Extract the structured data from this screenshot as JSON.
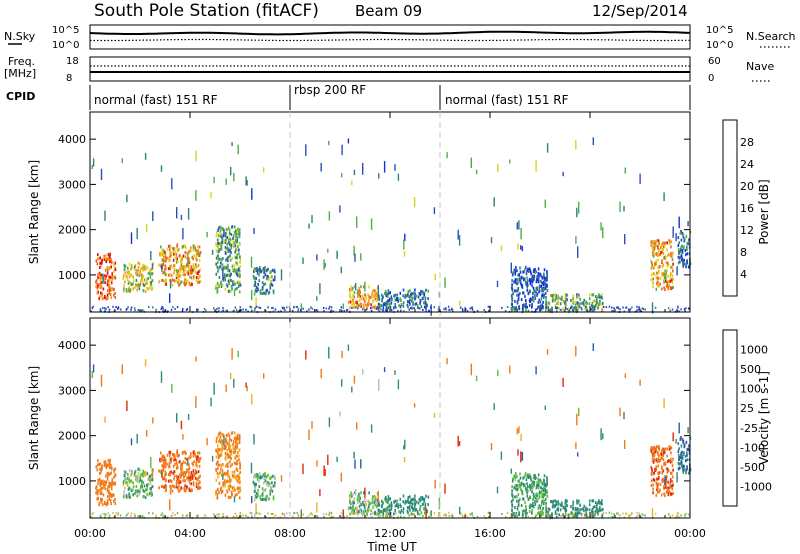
{
  "header": {
    "station": "South Pole Station (fitACF)",
    "beam": "Beam 09",
    "date": "12/Sep/2014"
  },
  "top_panels": {
    "nsky_label": "N.Sky",
    "nsky_ticks": [
      "10^5",
      "10^0"
    ],
    "nsearch_label": "N.Search",
    "nsearch_ticks": [
      "10^5",
      "10^0"
    ],
    "freq_label": "Freq.",
    "freq_unit": "[MHz]",
    "freq_ticks": [
      "18",
      "8"
    ],
    "nave_label": "Nave",
    "nave_ticks": [
      "60",
      "0"
    ],
    "cpid_label": "CPID",
    "cpid_segments": [
      {
        "label": "normal (fast) 151 RF",
        "start_hour": 0,
        "end_hour": 8
      },
      {
        "label": "rbsp 200 RF",
        "start_hour": 8,
        "end_hour": 14
      },
      {
        "label": "normal (fast) 151 RF",
        "start_hour": 14,
        "end_hour": 24
      }
    ]
  },
  "panels": {
    "ylabel": "Slant Range [km]",
    "xlabel": "Time UT",
    "xticks": [
      "00:00",
      "04:00",
      "08:00",
      "12:00",
      "16:00",
      "20:00",
      "00:00"
    ],
    "yticks": [
      "1000",
      "2000",
      "3000",
      "4000"
    ]
  },
  "power_colorbar": {
    "label": "Power [dB]",
    "ticks": [
      "4",
      "8",
      "12",
      "16",
      "20",
      "24",
      "28"
    ],
    "colors": [
      "#1030e0",
      "#2a4fb8",
      "#2f7f80",
      "#4fae4a",
      "#d8d420",
      "#f0a020",
      "#f06418",
      "#e01010"
    ]
  },
  "velocity_colorbar": {
    "label": "Velocity [m s-1]",
    "ticks": [
      "1000",
      "500",
      "100",
      "25",
      "-25",
      "-100",
      "-500",
      "-1000"
    ],
    "colors": [
      "#1a30c8",
      "#2a58b0",
      "#2f8a78",
      "#5cbf3c",
      "#bdbdbd",
      "#f0b020",
      "#f07a18",
      "#e02a10",
      "#e80c0c"
    ]
  },
  "chart_data": {
    "type": "heatmap",
    "title": "South Pole Station (fitACF) Beam 09 12/Sep/2014",
    "xlabel": "Time UT",
    "ylabel": "Slant Range [km]",
    "xlim": [
      0,
      24
    ],
    "ylim": [
      180,
      4600
    ],
    "scatter_regions": [
      {
        "t0": 0.2,
        "t1": 1.0,
        "r0": 500,
        "r1": 1500,
        "power": 26,
        "velocity": -250
      },
      {
        "t0": 1.3,
        "t1": 2.5,
        "r0": 650,
        "r1": 1300,
        "power": 18,
        "velocity": 60
      },
      {
        "t0": 2.7,
        "t1": 4.4,
        "r0": 800,
        "r1": 1700,
        "power": 22,
        "velocity": -350
      },
      {
        "t0": 5.0,
        "t1": 6.0,
        "r0": 650,
        "r1": 2100,
        "power": 12,
        "velocity": -150
      },
      {
        "t0": 6.5,
        "t1": 7.4,
        "r0": 600,
        "r1": 1200,
        "power": 10,
        "velocity": 80
      },
      {
        "t0": 10.3,
        "t1": 11.5,
        "r0": 280,
        "r1": 780,
        "power": 22,
        "velocity": 60
      },
      {
        "t0": 11.5,
        "t1": 13.5,
        "r0": 300,
        "r1": 700,
        "power": 9,
        "velocity": 200
      },
      {
        "t0": 16.8,
        "t1": 18.3,
        "r0": 250,
        "r1": 1200,
        "power": 6,
        "velocity": 120
      },
      {
        "t0": 18.2,
        "t1": 20.5,
        "r0": 220,
        "r1": 600,
        "power": 14,
        "velocity": 300
      },
      {
        "t0": 22.4,
        "t1": 23.3,
        "r0": 700,
        "r1": 1800,
        "power": 22,
        "velocity": -400
      },
      {
        "t0": 23.5,
        "t1": 24.0,
        "r0": 1200,
        "r1": 2000,
        "power": 8,
        "velocity": 600
      }
    ]
  }
}
